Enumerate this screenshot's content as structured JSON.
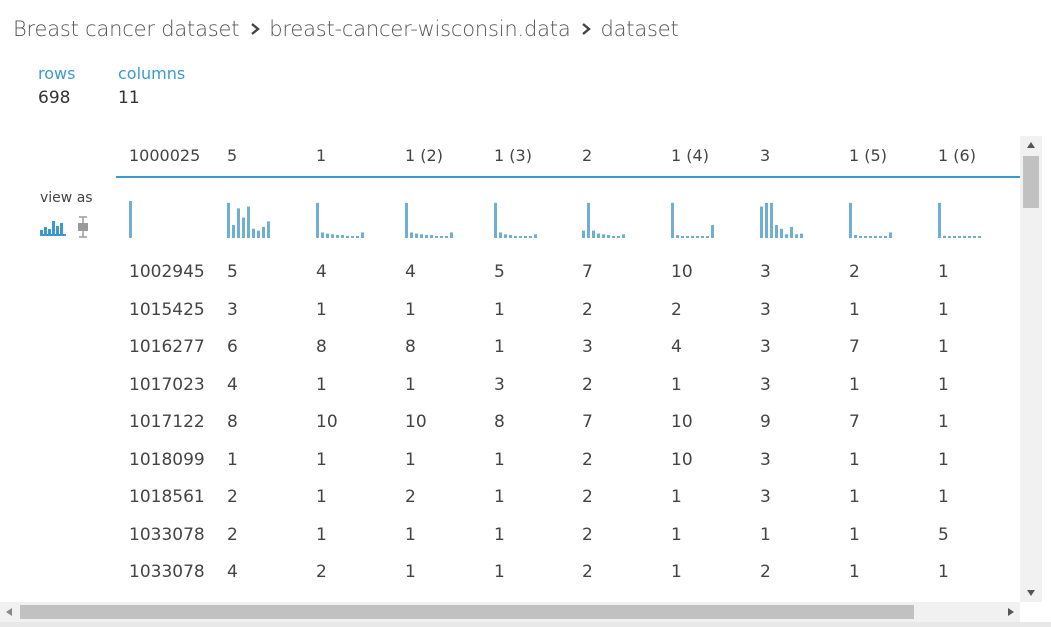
{
  "breadcrumb": {
    "items": [
      "Breast cancer dataset",
      "breast-cancer-wisconsin.data",
      "dataset"
    ]
  },
  "stats": {
    "rows_label": "rows",
    "rows_value": "698",
    "columns_label": "columns",
    "columns_value": "11"
  },
  "view_as": {
    "label": "view as",
    "histogram_icon": "histogram-icon",
    "boxplot_icon": "boxplot-icon"
  },
  "colors": {
    "accent": "#3a9ad0",
    "histogram_bar": "#6fb0d2",
    "text": "#444444"
  },
  "table": {
    "headers": [
      "1000025",
      "5",
      "1",
      "1 (2)",
      "1 (3)",
      "2",
      "1 (4)",
      "3",
      "1 (5)",
      "1 (6)"
    ],
    "histograms": [
      [
        1
      ],
      [
        0.95,
        0.35,
        0.8,
        0.55,
        0.85,
        0.25,
        0.2,
        0.3,
        0.45
      ],
      [
        0.95,
        0.15,
        0.12,
        0.1,
        0.08,
        0.08,
        0.05,
        0.05,
        0.05,
        0.15
      ],
      [
        0.95,
        0.15,
        0.12,
        0.1,
        0.08,
        0.08,
        0.05,
        0.05,
        0.05,
        0.15
      ],
      [
        0.95,
        0.15,
        0.1,
        0.08,
        0.05,
        0.05,
        0.05,
        0.05,
        0.1
      ],
      [
        0.2,
        0.95,
        0.2,
        0.12,
        0.1,
        0.08,
        0.05,
        0.05,
        0.1
      ],
      [
        0.95,
        0.08,
        0.05,
        0.05,
        0.05,
        0.03,
        0.03,
        0.05,
        0.35
      ],
      [
        0.85,
        0.95,
        0.95,
        0.35,
        0.25,
        0.1,
        0.3,
        0.1,
        0.12
      ],
      [
        0.95,
        0.08,
        0.05,
        0.05,
        0.05,
        0.05,
        0.05,
        0.05,
        0.15
      ],
      [
        0.95,
        0.06,
        0.04,
        0.03,
        0.02,
        0.02,
        0.02,
        0.02,
        0.04
      ]
    ],
    "rows": [
      [
        "1002945",
        "5",
        "4",
        "4",
        "5",
        "7",
        "10",
        "3",
        "2",
        "1"
      ],
      [
        "1015425",
        "3",
        "1",
        "1",
        "1",
        "2",
        "2",
        "3",
        "1",
        "1"
      ],
      [
        "1016277",
        "6",
        "8",
        "8",
        "1",
        "3",
        "4",
        "3",
        "7",
        "1"
      ],
      [
        "1017023",
        "4",
        "1",
        "1",
        "3",
        "2",
        "1",
        "3",
        "1",
        "1"
      ],
      [
        "1017122",
        "8",
        "10",
        "10",
        "8",
        "7",
        "10",
        "9",
        "7",
        "1"
      ],
      [
        "1018099",
        "1",
        "1",
        "1",
        "1",
        "2",
        "10",
        "3",
        "1",
        "1"
      ],
      [
        "1018561",
        "2",
        "1",
        "2",
        "1",
        "2",
        "1",
        "3",
        "1",
        "1"
      ],
      [
        "1033078",
        "2",
        "1",
        "1",
        "1",
        "2",
        "1",
        "1",
        "1",
        "5"
      ],
      [
        "1033078",
        "4",
        "2",
        "1",
        "1",
        "2",
        "1",
        "2",
        "1",
        "1"
      ]
    ]
  }
}
